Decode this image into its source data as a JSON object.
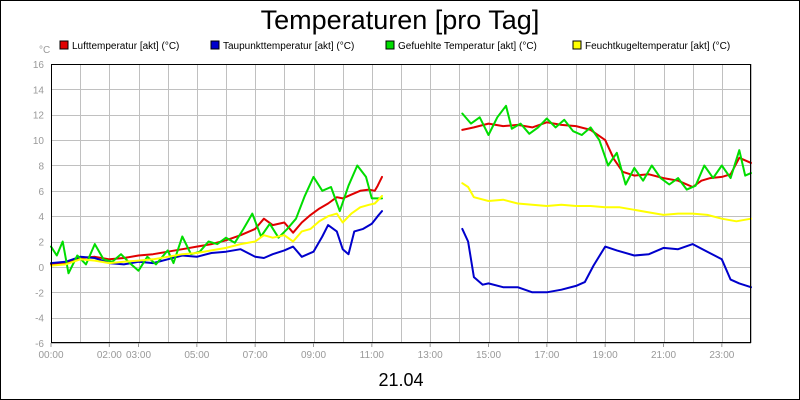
{
  "chart_data": {
    "type": "line",
    "title": "Temperaturen [pro Tag]",
    "xlabel": "21.04",
    "ylabel": "°C",
    "ylim": [
      -6,
      16
    ],
    "xlim": [
      0,
      24
    ],
    "grid": true,
    "legend_position": "top",
    "y_ticks": [
      "-6",
      "-4",
      "-2",
      "0",
      "2",
      "4",
      "6",
      "8",
      "10",
      "12",
      "14",
      "16"
    ],
    "x_ticks": [
      {
        "x": 0,
        "label": "00:00"
      },
      {
        "x": 2,
        "label": "02:00"
      },
      {
        "x": 3,
        "label": "03:00"
      },
      {
        "x": 5,
        "label": "05:00"
      },
      {
        "x": 7,
        "label": "07:00"
      },
      {
        "x": 9,
        "label": "09:00"
      },
      {
        "x": 11,
        "label": "11:00"
      },
      {
        "x": 13,
        "label": "13:00"
      },
      {
        "x": 15,
        "label": "15:00"
      },
      {
        "x": 17,
        "label": "17:00"
      },
      {
        "x": 19,
        "label": "19:00"
      },
      {
        "x": 21,
        "label": "21:00"
      },
      {
        "x": 23,
        "label": "23:00"
      }
    ],
    "series": [
      {
        "name": "Lufttemperatur [akt] (°C)",
        "color": "#e00000",
        "segments": [
          [
            [
              0,
              0.2
            ],
            [
              0.5,
              0.3
            ],
            [
              1,
              0.7
            ],
            [
              1.5,
              0.8
            ],
            [
              2,
              0.6
            ],
            [
              2.5,
              0.7
            ],
            [
              3,
              0.9
            ],
            [
              3.5,
              1.0
            ],
            [
              4,
              1.2
            ],
            [
              4.5,
              1.4
            ],
            [
              5,
              1.6
            ],
            [
              5.5,
              1.8
            ],
            [
              6,
              2.1
            ],
            [
              6.5,
              2.5
            ],
            [
              7,
              3.0
            ],
            [
              7.3,
              3.8
            ],
            [
              7.6,
              3.3
            ],
            [
              8,
              3.5
            ],
            [
              8.3,
              2.7
            ],
            [
              8.6,
              3.5
            ],
            [
              8.9,
              4.1
            ],
            [
              9.2,
              4.6
            ],
            [
              9.5,
              5.0
            ],
            [
              9.8,
              5.5
            ],
            [
              10,
              5.4
            ],
            [
              10.3,
              5.7
            ],
            [
              10.6,
              6.0
            ],
            [
              10.9,
              6.1
            ],
            [
              11.1,
              6.0
            ],
            [
              11.2,
              6.4
            ],
            [
              11.35,
              7.1
            ]
          ],
          [
            [
              14.1,
              10.8
            ],
            [
              14.5,
              11.0
            ],
            [
              15,
              11.3
            ],
            [
              15.5,
              11.1
            ],
            [
              16,
              11.2
            ],
            [
              16.5,
              11.0
            ],
            [
              17,
              11.4
            ],
            [
              17.5,
              11.2
            ],
            [
              18,
              11.1
            ],
            [
              18.5,
              10.8
            ],
            [
              19,
              10.0
            ],
            [
              19.3,
              8.5
            ],
            [
              19.6,
              7.5
            ],
            [
              20,
              7.2
            ],
            [
              20.5,
              7.3
            ],
            [
              21,
              7.0
            ],
            [
              21.5,
              6.8
            ],
            [
              22,
              6.3
            ],
            [
              22.3,
              6.8
            ],
            [
              22.6,
              7.0
            ],
            [
              23,
              7.1
            ],
            [
              23.3,
              7.3
            ],
            [
              23.6,
              8.6
            ],
            [
              24,
              8.2
            ]
          ]
        ]
      },
      {
        "name": "Taupunkttemperatur [akt] (°C)",
        "color": "#0000cc",
        "segments": [
          [
            [
              0,
              0.3
            ],
            [
              0.5,
              0.4
            ],
            [
              1,
              0.8
            ],
            [
              1.5,
              0.7
            ],
            [
              2,
              0.3
            ],
            [
              2.5,
              0.2
            ],
            [
              3,
              0.4
            ],
            [
              3.5,
              0.3
            ],
            [
              4,
              0.6
            ],
            [
              4.5,
              0.9
            ],
            [
              5,
              0.8
            ],
            [
              5.5,
              1.1
            ],
            [
              6,
              1.2
            ],
            [
              6.5,
              1.4
            ],
            [
              7,
              0.8
            ],
            [
              7.3,
              0.7
            ],
            [
              7.6,
              1.0
            ],
            [
              8,
              1.3
            ],
            [
              8.3,
              1.6
            ],
            [
              8.6,
              0.8
            ],
            [
              9,
              1.2
            ],
            [
              9.3,
              2.4
            ],
            [
              9.5,
              3.3
            ],
            [
              9.8,
              2.8
            ],
            [
              10,
              1.4
            ],
            [
              10.2,
              1.0
            ],
            [
              10.4,
              2.8
            ],
            [
              10.7,
              3.0
            ],
            [
              11,
              3.4
            ],
            [
              11.2,
              4.0
            ],
            [
              11.35,
              4.4
            ]
          ],
          [
            [
              14.1,
              3.0
            ],
            [
              14.3,
              2.0
            ],
            [
              14.5,
              -0.8
            ],
            [
              14.8,
              -1.4
            ],
            [
              15,
              -1.3
            ],
            [
              15.5,
              -1.6
            ],
            [
              16,
              -1.6
            ],
            [
              16.5,
              -2.0
            ],
            [
              17,
              -2.0
            ],
            [
              17.5,
              -1.8
            ],
            [
              18,
              -1.5
            ],
            [
              18.3,
              -1.2
            ],
            [
              18.6,
              0.1
            ],
            [
              19,
              1.6
            ],
            [
              19.4,
              1.3
            ],
            [
              20,
              0.9
            ],
            [
              20.5,
              1.0
            ],
            [
              21,
              1.5
            ],
            [
              21.5,
              1.4
            ],
            [
              22,
              1.8
            ],
            [
              22.5,
              1.2
            ],
            [
              23,
              0.6
            ],
            [
              23.3,
              -1.0
            ],
            [
              23.6,
              -1.3
            ],
            [
              24,
              -1.6
            ]
          ]
        ]
      },
      {
        "name": "Gefuehlte Temperatur [akt] (°C)",
        "color": "#00dd00",
        "segments": [
          [
            [
              0,
              1.6
            ],
            [
              0.2,
              0.9
            ],
            [
              0.4,
              2.0
            ],
            [
              0.6,
              -0.5
            ],
            [
              0.9,
              0.9
            ],
            [
              1.2,
              0.2
            ],
            [
              1.5,
              1.8
            ],
            [
              1.8,
              0.6
            ],
            [
              2.1,
              0.4
            ],
            [
              2.4,
              1.0
            ],
            [
              2.7,
              0.3
            ],
            [
              3,
              -0.3
            ],
            [
              3.3,
              0.8
            ],
            [
              3.6,
              0.2
            ],
            [
              4,
              1.3
            ],
            [
              4.2,
              0.3
            ],
            [
              4.5,
              2.4
            ],
            [
              4.8,
              1.0
            ],
            [
              5.1,
              1.2
            ],
            [
              5.4,
              2.0
            ],
            [
              5.7,
              1.8
            ],
            [
              6,
              2.3
            ],
            [
              6.3,
              1.9
            ],
            [
              6.6,
              3.0
            ],
            [
              6.9,
              4.2
            ],
            [
              7.2,
              2.4
            ],
            [
              7.5,
              3.4
            ],
            [
              7.8,
              2.3
            ],
            [
              8.1,
              3.0
            ],
            [
              8.4,
              3.8
            ],
            [
              8.7,
              5.6
            ],
            [
              9,
              7.1
            ],
            [
              9.3,
              6.0
            ],
            [
              9.6,
              6.3
            ],
            [
              9.9,
              4.4
            ],
            [
              10.2,
              6.4
            ],
            [
              10.5,
              8.0
            ],
            [
              10.8,
              7.1
            ],
            [
              11,
              5.4
            ],
            [
              11.2,
              5.4
            ],
            [
              11.35,
              5.4
            ]
          ],
          [
            [
              14.1,
              12.1
            ],
            [
              14.4,
              11.3
            ],
            [
              14.7,
              11.8
            ],
            [
              15,
              10.4
            ],
            [
              15.3,
              11.8
            ],
            [
              15.6,
              12.7
            ],
            [
              15.8,
              10.9
            ],
            [
              16.1,
              11.3
            ],
            [
              16.4,
              10.5
            ],
            [
              16.7,
              11.0
            ],
            [
              17,
              11.7
            ],
            [
              17.3,
              11.0
            ],
            [
              17.6,
              11.6
            ],
            [
              17.9,
              10.7
            ],
            [
              18.2,
              10.4
            ],
            [
              18.5,
              11.0
            ],
            [
              18.8,
              10.0
            ],
            [
              19.1,
              8.0
            ],
            [
              19.4,
              9.0
            ],
            [
              19.7,
              6.5
            ],
            [
              20,
              7.8
            ],
            [
              20.3,
              6.8
            ],
            [
              20.6,
              8.0
            ],
            [
              20.9,
              7.0
            ],
            [
              21.2,
              6.5
            ],
            [
              21.5,
              7.0
            ],
            [
              21.8,
              6.1
            ],
            [
              22.1,
              6.4
            ],
            [
              22.4,
              8.0
            ],
            [
              22.7,
              7.0
            ],
            [
              23,
              8.0
            ],
            [
              23.3,
              7.0
            ],
            [
              23.6,
              9.2
            ],
            [
              23.8,
              7.2
            ],
            [
              24,
              7.4
            ]
          ]
        ]
      },
      {
        "name": "Feuchtkugeltemperatur [akt] (°C)",
        "color": "#ffff00",
        "segments": [
          [
            [
              0,
              0.1
            ],
            [
              0.5,
              0.2
            ],
            [
              1,
              0.6
            ],
            [
              1.5,
              0.5
            ],
            [
              2,
              0.3
            ],
            [
              2.5,
              0.4
            ],
            [
              3,
              0.5
            ],
            [
              3.5,
              0.6
            ],
            [
              4,
              0.8
            ],
            [
              4.5,
              1.0
            ],
            [
              5,
              1.1
            ],
            [
              5.5,
              1.3
            ],
            [
              6,
              1.5
            ],
            [
              6.5,
              1.8
            ],
            [
              7,
              2.0
            ],
            [
              7.3,
              2.5
            ],
            [
              7.6,
              2.3
            ],
            [
              8,
              2.5
            ],
            [
              8.3,
              2.0
            ],
            [
              8.6,
              2.8
            ],
            [
              8.9,
              3.0
            ],
            [
              9.2,
              3.6
            ],
            [
              9.5,
              4.0
            ],
            [
              9.8,
              4.2
            ],
            [
              10,
              3.5
            ],
            [
              10.3,
              4.2
            ],
            [
              10.6,
              4.7
            ],
            [
              10.9,
              4.9
            ],
            [
              11.1,
              5.0
            ],
            [
              11.35,
              5.6
            ]
          ],
          [
            [
              14.1,
              6.6
            ],
            [
              14.3,
              6.3
            ],
            [
              14.5,
              5.5
            ],
            [
              15,
              5.2
            ],
            [
              15.5,
              5.3
            ],
            [
              16,
              5.0
            ],
            [
              16.5,
              4.9
            ],
            [
              17,
              4.8
            ],
            [
              17.5,
              4.9
            ],
            [
              18,
              4.8
            ],
            [
              18.5,
              4.8
            ],
            [
              19,
              4.7
            ],
            [
              19.5,
              4.7
            ],
            [
              20,
              4.5
            ],
            [
              20.5,
              4.3
            ],
            [
              21,
              4.1
            ],
            [
              21.5,
              4.2
            ],
            [
              22,
              4.2
            ],
            [
              22.5,
              4.1
            ],
            [
              23,
              3.8
            ],
            [
              23.5,
              3.6
            ],
            [
              24,
              3.8
            ]
          ]
        ]
      }
    ]
  }
}
